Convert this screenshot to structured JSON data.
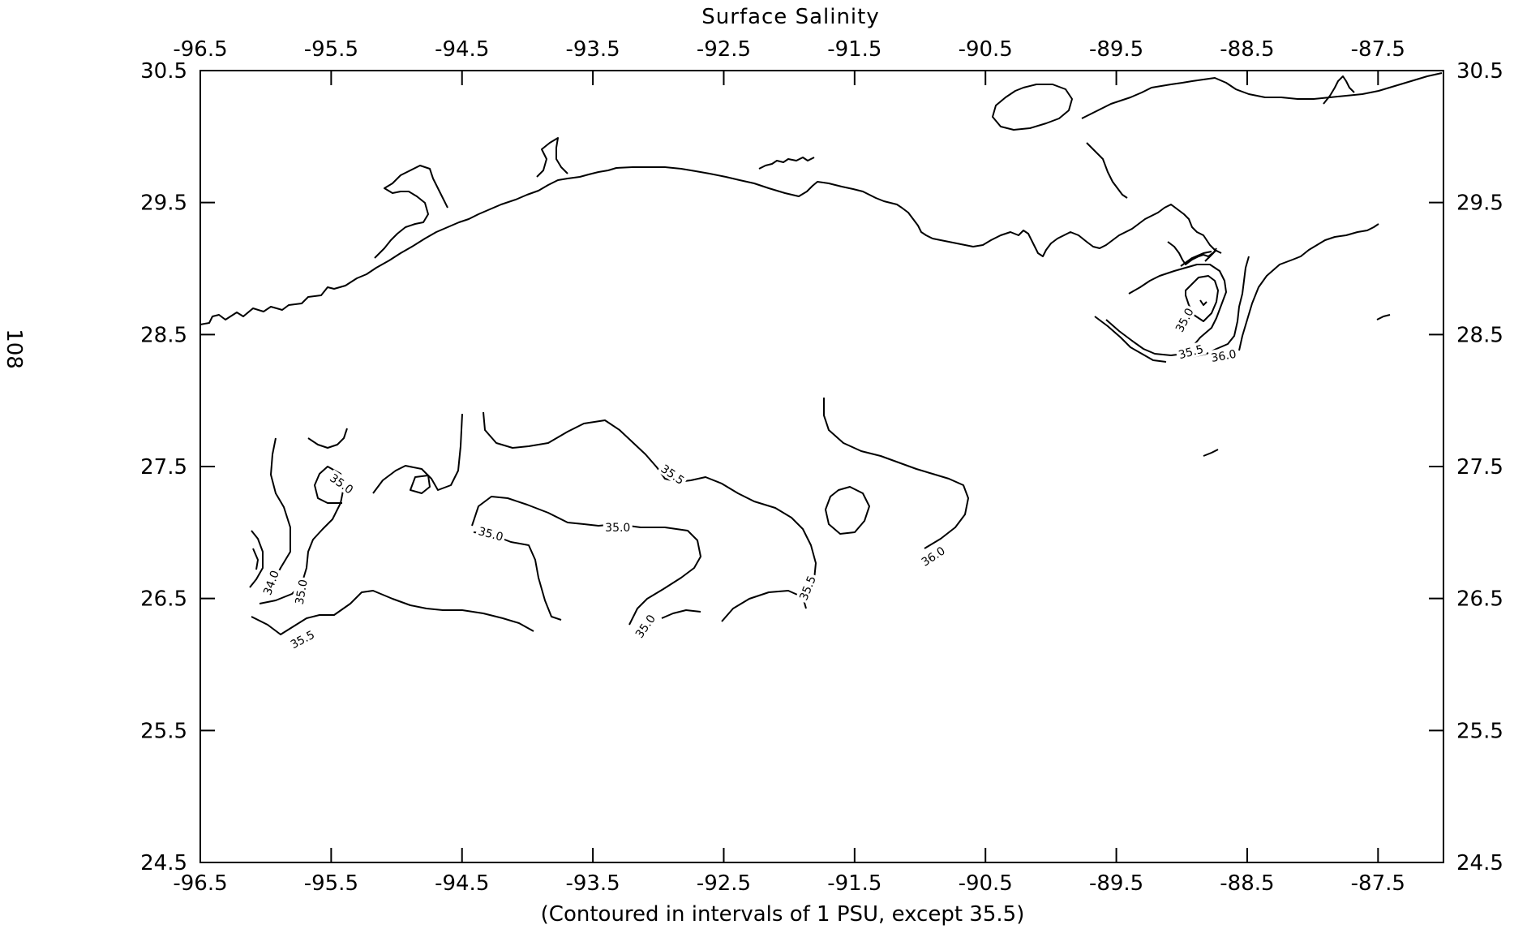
{
  "page_number": "108",
  "map": {
    "title": "Surface Salinity",
    "caption": "(Contoured in intervals of 1 PSU, except 35.5)",
    "lon_range": [
      -96.5,
      -87.0
    ],
    "lat_range": [
      24.5,
      30.5
    ],
    "lon_ticks": [
      "-96.5",
      "-95.5",
      "-94.5",
      "-93.5",
      "-92.5",
      "-91.5",
      "-90.5",
      "-89.5",
      "-88.5",
      "-87.5"
    ],
    "lat_ticks": [
      "30.5",
      "29.5",
      "28.5",
      "27.5",
      "26.5",
      "25.5",
      "24.5"
    ],
    "contour_labels": [
      {
        "text": "35.0",
        "lon": -95.42,
        "lat": 27.37,
        "angle": 35
      },
      {
        "text": "34.0",
        "lon": -95.96,
        "lat": 26.62,
        "angle": -70
      },
      {
        "text": "35.0",
        "lon": -95.73,
        "lat": 26.55,
        "angle": -80
      },
      {
        "text": "35.5",
        "lon": -95.72,
        "lat": 26.19,
        "angle": -28
      },
      {
        "text": "35.0",
        "lon": -94.28,
        "lat": 26.99,
        "angle": 15
      },
      {
        "text": "35.0",
        "lon": -93.31,
        "lat": 27.04,
        "angle": 0
      },
      {
        "text": "35.5",
        "lon": -92.89,
        "lat": 27.44,
        "angle": 35
      },
      {
        "text": "35.0",
        "lon": -93.1,
        "lat": 26.29,
        "angle": -55
      },
      {
        "text": "35.5",
        "lon": -91.86,
        "lat": 26.58,
        "angle": -68
      },
      {
        "text": "36.0",
        "lon": -90.9,
        "lat": 26.82,
        "angle": -33
      },
      {
        "text": "35.0",
        "lon": -88.98,
        "lat": 28.61,
        "angle": -62
      },
      {
        "text": "35.5",
        "lon": -88.93,
        "lat": 28.37,
        "angle": -15
      },
      {
        "text": "36.0",
        "lon": -88.68,
        "lat": 28.34,
        "angle": -10
      }
    ]
  }
}
